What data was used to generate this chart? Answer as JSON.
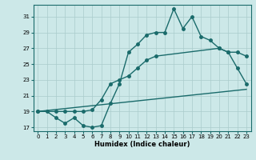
{
  "xlabel": "Humidex (Indice chaleur)",
  "bg_color": "#cce8e8",
  "line_color": "#1a6b6b",
  "grid_color": "#aacccc",
  "xlim": [
    -0.5,
    23.5
  ],
  "ylim": [
    16.5,
    32.5
  ],
  "yticks": [
    17,
    19,
    21,
    23,
    25,
    27,
    29,
    31
  ],
  "xticks": [
    0,
    1,
    2,
    3,
    4,
    5,
    6,
    7,
    8,
    9,
    10,
    11,
    12,
    13,
    14,
    15,
    16,
    17,
    18,
    19,
    20,
    21,
    22,
    23
  ],
  "line1_x": [
    0,
    1,
    2,
    3,
    4,
    5,
    6,
    7,
    8,
    9,
    10,
    11,
    12,
    13,
    14,
    15,
    16,
    17,
    18,
    19,
    20,
    21,
    22,
    23
  ],
  "line1_y": [
    19,
    19,
    18.2,
    17.5,
    18.2,
    17.2,
    17.0,
    17.2,
    20.0,
    22.5,
    26.5,
    27.5,
    28.7,
    29.0,
    29.0,
    32.0,
    29.5,
    31.0,
    28.5,
    28.0,
    27.0,
    26.5,
    24.5,
    22.5
  ],
  "line2_x": [
    0,
    2,
    3,
    4,
    5,
    6,
    7,
    8,
    9,
    10,
    11,
    12,
    13,
    20,
    21,
    22,
    23
  ],
  "line2_y": [
    19,
    19,
    19,
    19,
    19,
    19.2,
    20.5,
    22.5,
    23.0,
    23.5,
    24.5,
    25.5,
    26.0,
    27.0,
    26.5,
    26.5,
    26.0
  ],
  "line3_x": [
    0,
    23
  ],
  "line3_y": [
    19.0,
    21.8
  ],
  "marker_size": 2.5,
  "linewidth": 1.0
}
